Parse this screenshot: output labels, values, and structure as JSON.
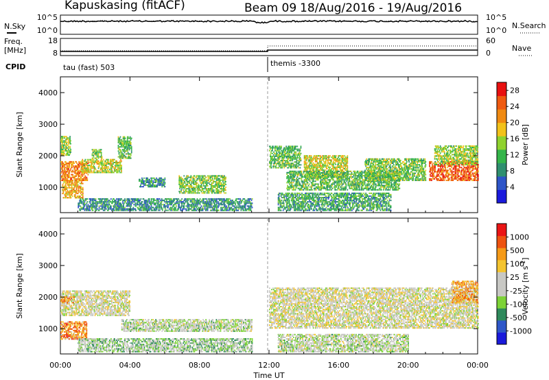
{
  "header": {
    "title": "Kapuskasing (fitACF)",
    "beam": "Beam 09",
    "date_range": "18/Aug/2016 - 19/Aug/2016"
  },
  "aux_panels": {
    "nsky_label": "N.Sky",
    "nsearch_label": "N.Search",
    "noise_ticks": [
      "10^5",
      "10^0"
    ],
    "freq_label_1": "Freq.",
    "freq_label_2": "[MHz]",
    "freq_ticks": [
      "18",
      "8"
    ],
    "nave_label": "Nave",
    "nave_ticks": [
      "60",
      "0"
    ],
    "cpid_label": "CPID",
    "cpid_segments": [
      {
        "text": "tau (fast) 503",
        "start_hour": 0
      },
      {
        "text": "themis -3300",
        "start_hour": 12
      }
    ]
  },
  "colors": {
    "power": [
      "#1a1adc",
      "#2e55c8",
      "#2f8f6f",
      "#35b54a",
      "#8fd22e",
      "#f2c21a",
      "#f08a12",
      "#ef5a10",
      "#e81010"
    ],
    "velocity": [
      "#ea1515",
      "#ee5310",
      "#f59a17",
      "#f4c430",
      "#c8c8c4",
      "#c8c8c4",
      "#7dd337",
      "#2f8a5c",
      "#2e57c9",
      "#1a1adb"
    ]
  },
  "chart_data": [
    {
      "type": "heatmap",
      "name": "power",
      "ylabel": "Slant Range [km]",
      "ylim": [
        200,
        4500
      ],
      "yticks": [
        1000,
        2000,
        3000,
        4000
      ],
      "xlim": [
        0,
        24
      ],
      "xticks": [
        "00:00",
        "04:00",
        "08:00",
        "12:00",
        "16:00",
        "20:00",
        "00:00"
      ],
      "colorbar": {
        "label": "Power [dB]",
        "ticks": [
          "4",
          "8",
          "12",
          "16",
          "20",
          "24",
          "28"
        ],
        "range": [
          0,
          30
        ]
      },
      "regions": [
        {
          "t": [
            0.0,
            1.6
          ],
          "r": [
            1200,
            1800
          ],
          "level": 0.75
        },
        {
          "t": [
            0.0,
            0.6
          ],
          "r": [
            2000,
            2600
          ],
          "level": 0.5
        },
        {
          "t": [
            0.1,
            1.3
          ],
          "r": [
            650,
            1200
          ],
          "level": 0.65
        },
        {
          "t": [
            1.2,
            3.5
          ],
          "r": [
            1450,
            1900
          ],
          "level": 0.55
        },
        {
          "t": [
            1.8,
            2.4
          ],
          "r": [
            1900,
            2200
          ],
          "level": 0.45
        },
        {
          "t": [
            3.3,
            4.1
          ],
          "r": [
            1900,
            2600
          ],
          "level": 0.4
        },
        {
          "t": [
            4.5,
            6.0
          ],
          "r": [
            1000,
            1300
          ],
          "level": 0.3
        },
        {
          "t": [
            6.8,
            9.5
          ],
          "r": [
            800,
            1350
          ],
          "level": 0.45
        },
        {
          "t": [
            1.0,
            11.0
          ],
          "r": [
            250,
            650
          ],
          "level": 0.3
        },
        {
          "t": [
            12.0,
            13.8
          ],
          "r": [
            1600,
            2300
          ],
          "level": 0.4
        },
        {
          "t": [
            14.0,
            16.5
          ],
          "r": [
            1300,
            2000
          ],
          "level": 0.55
        },
        {
          "t": [
            13.0,
            19.5
          ],
          "r": [
            900,
            1500
          ],
          "level": 0.4
        },
        {
          "t": [
            17.5,
            21.0
          ],
          "r": [
            1200,
            1900
          ],
          "level": 0.45
        },
        {
          "t": [
            21.2,
            24.0
          ],
          "r": [
            1200,
            1800
          ],
          "level": 0.82
        },
        {
          "t": [
            21.5,
            24.0
          ],
          "r": [
            1700,
            2300
          ],
          "level": 0.5
        },
        {
          "t": [
            12.5,
            19.0
          ],
          "r": [
            250,
            800
          ],
          "level": 0.35
        }
      ]
    },
    {
      "type": "heatmap",
      "name": "velocity",
      "ylabel": "Slant Range [km]",
      "ylim": [
        200,
        4500
      ],
      "yticks": [
        1000,
        2000,
        3000,
        4000
      ],
      "xlim": [
        0,
        24
      ],
      "xticks": [
        "00:00",
        "04:00",
        "08:00",
        "12:00",
        "16:00",
        "20:00",
        "00:00"
      ],
      "xlabel": "Time UT",
      "colorbar": {
        "label": "Velocity [m s-1]",
        "ticks": [
          "-1000",
          "-500",
          "-100",
          "-25",
          "25",
          "100",
          "500",
          "1000"
        ]
      },
      "regions": [
        {
          "t": [
            0.0,
            4.0
          ],
          "r": [
            1400,
            2200
          ],
          "level": 0.48
        },
        {
          "t": [
            0.0,
            1.5
          ],
          "r": [
            650,
            1200
          ],
          "level": 0.25
        },
        {
          "t": [
            0.0,
            0.8
          ],
          "r": [
            1800,
            2000
          ],
          "level": 0.3
        },
        {
          "t": [
            1.0,
            11.0
          ],
          "r": [
            250,
            700
          ],
          "level": 0.6
        },
        {
          "t": [
            3.5,
            11.0
          ],
          "r": [
            900,
            1300
          ],
          "level": 0.55
        },
        {
          "t": [
            12.0,
            24.0
          ],
          "r": [
            1000,
            2300
          ],
          "level": 0.48
        },
        {
          "t": [
            12.5,
            20.0
          ],
          "r": [
            250,
            800
          ],
          "level": 0.55
        },
        {
          "t": [
            22.5,
            24.0
          ],
          "r": [
            1800,
            2500
          ],
          "level": 0.3
        }
      ]
    }
  ]
}
